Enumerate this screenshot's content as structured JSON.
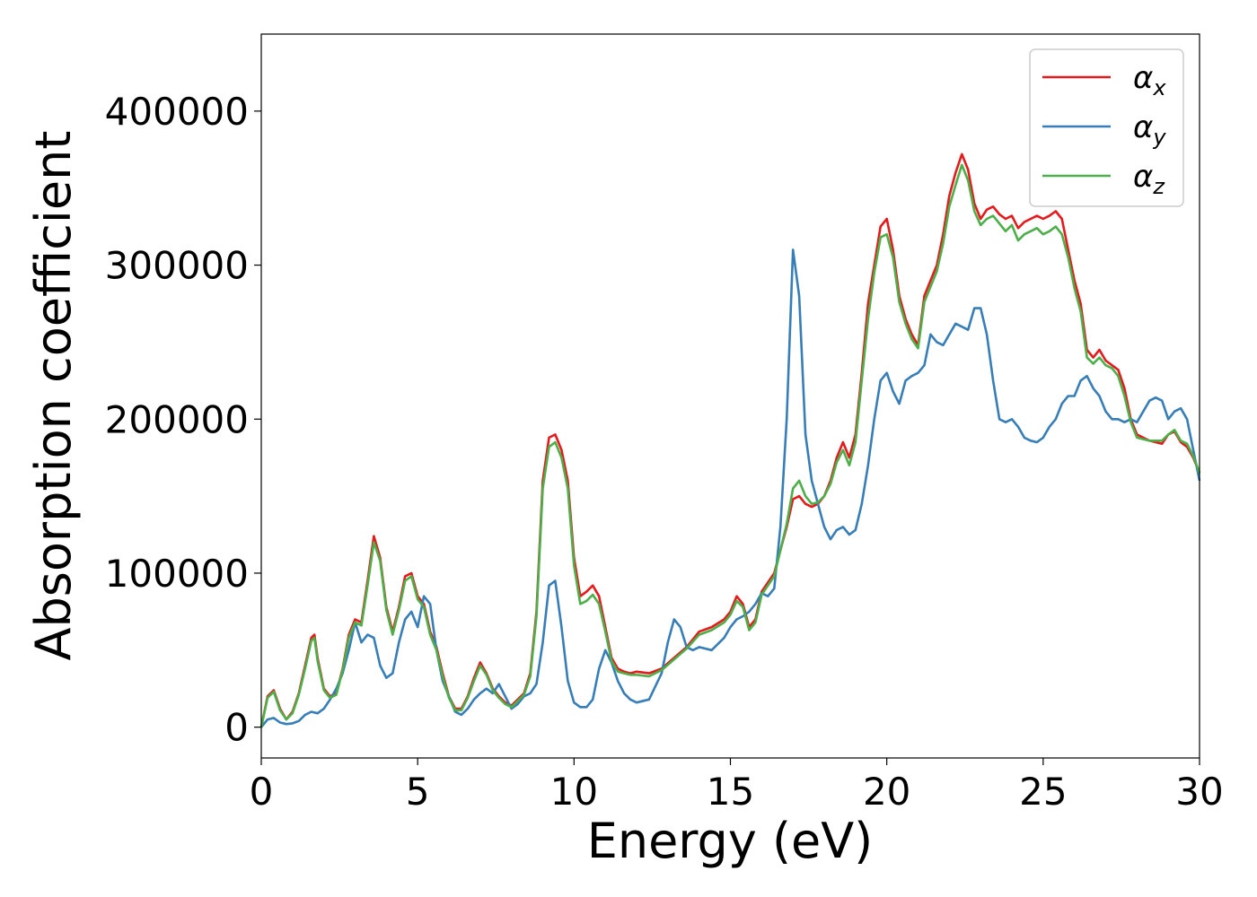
{
  "chart_data": {
    "type": "line",
    "xlabel": "Energy (eV)",
    "ylabel": "Absorption coefficient",
    "xlim": [
      0,
      30
    ],
    "ylim": [
      -20000,
      450000
    ],
    "xticks": [
      0,
      5,
      10,
      15,
      20,
      25,
      30
    ],
    "yticks": [
      0,
      100000,
      200000,
      300000,
      400000
    ],
    "grid": false,
    "legend_position": "top-right",
    "series": [
      {
        "name": "α",
        "subscript": "x",
        "color": "#e41a1c",
        "x": [
          0,
          0.2,
          0.4,
          0.6,
          0.8,
          1.0,
          1.2,
          1.4,
          1.6,
          1.7,
          1.8,
          2.0,
          2.2,
          2.4,
          2.6,
          2.8,
          3.0,
          3.2,
          3.4,
          3.6,
          3.8,
          4.0,
          4.2,
          4.4,
          4.6,
          4.8,
          5.0,
          5.2,
          5.4,
          5.6,
          5.8,
          6.0,
          6.2,
          6.4,
          6.6,
          6.8,
          7.0,
          7.2,
          7.4,
          7.6,
          7.8,
          8.0,
          8.2,
          8.4,
          8.6,
          8.8,
          9.0,
          9.2,
          9.4,
          9.6,
          9.8,
          10.0,
          10.2,
          10.4,
          10.6,
          10.8,
          11.0,
          11.2,
          11.4,
          11.6,
          11.8,
          12.0,
          12.4,
          12.8,
          13.2,
          13.6,
          14.0,
          14.4,
          14.8,
          15.0,
          15.2,
          15.4,
          15.6,
          15.8,
          16.0,
          16.4,
          16.8,
          17.0,
          17.2,
          17.4,
          17.6,
          17.8,
          18.0,
          18.2,
          18.4,
          18.6,
          18.8,
          19.0,
          19.2,
          19.4,
          19.6,
          19.8,
          20.0,
          20.2,
          20.4,
          20.6,
          20.8,
          21.0,
          21.2,
          21.4,
          21.6,
          21.8,
          22.0,
          22.2,
          22.4,
          22.6,
          22.8,
          23.0,
          23.2,
          23.4,
          23.6,
          23.8,
          24.0,
          24.2,
          24.4,
          24.6,
          24.8,
          25.0,
          25.2,
          25.4,
          25.6,
          25.8,
          26.0,
          26.2,
          26.4,
          26.6,
          26.8,
          27.0,
          27.2,
          27.4,
          27.6,
          27.8,
          28.0,
          28.2,
          28.4,
          28.6,
          28.8,
          29.0,
          29.2,
          29.4,
          29.6,
          29.8,
          30.0
        ],
        "y": [
          0,
          20000,
          24000,
          12000,
          5000,
          10000,
          22000,
          40000,
          58000,
          60000,
          45000,
          25000,
          20000,
          22000,
          38000,
          60000,
          70000,
          68000,
          95000,
          124000,
          110000,
          78000,
          62000,
          78000,
          98000,
          100000,
          85000,
          80000,
          62000,
          52000,
          35000,
          20000,
          12000,
          12000,
          20000,
          32000,
          42000,
          35000,
          25000,
          20000,
          16000,
          14000,
          18000,
          22000,
          35000,
          75000,
          160000,
          188000,
          190000,
          180000,
          160000,
          110000,
          85000,
          88000,
          92000,
          85000,
          65000,
          45000,
          38000,
          36000,
          35000,
          36000,
          35000,
          38000,
          45000,
          52000,
          62000,
          65000,
          70000,
          75000,
          85000,
          80000,
          65000,
          70000,
          88000,
          100000,
          130000,
          148000,
          150000,
          145000,
          143000,
          145000,
          150000,
          160000,
          175000,
          185000,
          175000,
          190000,
          230000,
          275000,
          300000,
          325000,
          330000,
          310000,
          280000,
          265000,
          255000,
          248000,
          280000,
          290000,
          300000,
          320000,
          345000,
          360000,
          372000,
          362000,
          340000,
          330000,
          336000,
          338000,
          333000,
          330000,
          332000,
          324000,
          328000,
          330000,
          332000,
          330000,
          332000,
          335000,
          330000,
          310000,
          290000,
          275000,
          245000,
          240000,
          245000,
          238000,
          235000,
          232000,
          220000,
          200000,
          190000,
          188000,
          186000,
          185000,
          184000,
          190000,
          192000,
          185000,
          182000,
          175000,
          165000
        ],
        "legend_label": "α",
        "legend_sub": "x"
      },
      {
        "name": "α",
        "subscript": "y",
        "color": "#377eb8",
        "x": [
          0,
          0.2,
          0.4,
          0.6,
          0.8,
          1.0,
          1.2,
          1.4,
          1.6,
          1.8,
          2.0,
          2.2,
          2.4,
          2.6,
          2.8,
          3.0,
          3.2,
          3.4,
          3.6,
          3.8,
          4.0,
          4.2,
          4.4,
          4.6,
          4.8,
          5.0,
          5.2,
          5.4,
          5.6,
          5.8,
          6.0,
          6.2,
          6.4,
          6.6,
          6.8,
          7.0,
          7.2,
          7.4,
          7.6,
          7.8,
          8.0,
          8.2,
          8.4,
          8.6,
          8.8,
          9.0,
          9.2,
          9.4,
          9.6,
          9.8,
          10.0,
          10.2,
          10.4,
          10.6,
          10.8,
          11.0,
          11.2,
          11.4,
          11.6,
          11.8,
          12.0,
          12.4,
          12.8,
          13.0,
          13.2,
          13.4,
          13.6,
          13.8,
          14.0,
          14.4,
          14.8,
          15.0,
          15.2,
          15.4,
          15.6,
          15.8,
          16.0,
          16.2,
          16.4,
          16.6,
          16.8,
          17.0,
          17.2,
          17.4,
          17.6,
          17.8,
          18.0,
          18.2,
          18.4,
          18.6,
          18.8,
          19.0,
          19.2,
          19.4,
          19.6,
          19.8,
          20.0,
          20.2,
          20.4,
          20.6,
          20.8,
          21.0,
          21.2,
          21.4,
          21.6,
          21.8,
          22.0,
          22.2,
          22.4,
          22.6,
          22.8,
          23.0,
          23.2,
          23.4,
          23.6,
          23.8,
          24.0,
          24.2,
          24.4,
          24.6,
          24.8,
          25.0,
          25.2,
          25.4,
          25.6,
          25.8,
          26.0,
          26.2,
          26.4,
          26.6,
          26.8,
          27.0,
          27.2,
          27.4,
          27.6,
          27.8,
          28.0,
          28.2,
          28.4,
          28.6,
          28.8,
          29.0,
          29.2,
          29.4,
          29.6,
          29.8,
          30.0
        ],
        "y": [
          0,
          5000,
          6000,
          3000,
          2000,
          2500,
          4000,
          8000,
          10000,
          9000,
          12000,
          18000,
          25000,
          35000,
          50000,
          68000,
          55000,
          60000,
          58000,
          40000,
          32000,
          35000,
          55000,
          70000,
          75000,
          65000,
          85000,
          80000,
          50000,
          30000,
          20000,
          10000,
          8000,
          12000,
          18000,
          22000,
          25000,
          22000,
          28000,
          20000,
          12000,
          15000,
          20000,
          22000,
          28000,
          55000,
          92000,
          95000,
          65000,
          30000,
          16000,
          13000,
          13000,
          18000,
          38000,
          50000,
          42000,
          30000,
          22000,
          18000,
          16000,
          18000,
          35000,
          55000,
          70000,
          65000,
          52000,
          50000,
          52000,
          50000,
          58000,
          65000,
          70000,
          72000,
          75000,
          80000,
          87000,
          85000,
          90000,
          130000,
          200000,
          310000,
          280000,
          190000,
          160000,
          145000,
          130000,
          122000,
          128000,
          130000,
          125000,
          128000,
          145000,
          170000,
          200000,
          225000,
          230000,
          218000,
          210000,
          225000,
          228000,
          230000,
          235000,
          255000,
          250000,
          248000,
          255000,
          262000,
          260000,
          258000,
          272000,
          272000,
          255000,
          225000,
          200000,
          198000,
          200000,
          195000,
          188000,
          186000,
          185000,
          188000,
          195000,
          200000,
          210000,
          215000,
          215000,
          225000,
          228000,
          220000,
          215000,
          205000,
          200000,
          200000,
          198000,
          200000,
          198000,
          205000,
          212000,
          214000,
          212000,
          200000,
          205000,
          207000,
          200000,
          180000,
          160000
        ],
        "legend_label": "α",
        "legend_sub": "y"
      },
      {
        "name": "α",
        "subscript": "z",
        "color": "#4daf4a",
        "x": [
          0,
          0.2,
          0.4,
          0.6,
          0.8,
          1.0,
          1.2,
          1.4,
          1.6,
          1.7,
          1.8,
          2.0,
          2.2,
          2.4,
          2.6,
          2.8,
          3.0,
          3.2,
          3.4,
          3.6,
          3.8,
          4.0,
          4.2,
          4.4,
          4.6,
          4.8,
          5.0,
          5.2,
          5.4,
          5.6,
          5.8,
          6.0,
          6.2,
          6.4,
          6.6,
          6.8,
          7.0,
          7.2,
          7.4,
          7.6,
          7.8,
          8.0,
          8.2,
          8.4,
          8.6,
          8.8,
          9.0,
          9.2,
          9.4,
          9.6,
          9.8,
          10.0,
          10.2,
          10.4,
          10.6,
          10.8,
          11.0,
          11.2,
          11.4,
          11.6,
          11.8,
          12.0,
          12.4,
          12.8,
          13.2,
          13.6,
          14.0,
          14.4,
          14.8,
          15.0,
          15.2,
          15.4,
          15.6,
          15.8,
          16.0,
          16.4,
          16.8,
          17.0,
          17.2,
          17.4,
          17.6,
          17.8,
          18.0,
          18.2,
          18.4,
          18.6,
          18.8,
          19.0,
          19.2,
          19.4,
          19.6,
          19.8,
          20.0,
          20.2,
          20.4,
          20.6,
          20.8,
          21.0,
          21.2,
          21.4,
          21.6,
          21.8,
          22.0,
          22.2,
          22.4,
          22.6,
          22.8,
          23.0,
          23.2,
          23.4,
          23.6,
          23.8,
          24.0,
          24.2,
          24.4,
          24.6,
          24.8,
          25.0,
          25.2,
          25.4,
          25.6,
          25.8,
          26.0,
          26.2,
          26.4,
          26.6,
          26.8,
          27.0,
          27.2,
          27.4,
          27.6,
          27.8,
          28.0,
          28.2,
          28.4,
          28.6,
          28.8,
          29.0,
          29.2,
          29.4,
          29.6,
          29.8,
          30.0
        ],
        "y": [
          0,
          19000,
          23000,
          11000,
          5000,
          9000,
          21000,
          38000,
          56000,
          58000,
          43000,
          24000,
          19000,
          21000,
          37000,
          58000,
          68000,
          66000,
          92000,
          120000,
          108000,
          76000,
          60000,
          76000,
          95000,
          98000,
          83000,
          78000,
          60000,
          50000,
          33000,
          19000,
          11000,
          11000,
          19000,
          30000,
          40000,
          34000,
          24000,
          19000,
          15000,
          13000,
          17000,
          21000,
          33000,
          72000,
          155000,
          182000,
          185000,
          175000,
          155000,
          105000,
          80000,
          82000,
          86000,
          80000,
          62000,
          43000,
          36000,
          35000,
          34000,
          34000,
          33000,
          37000,
          44000,
          51000,
          60000,
          63000,
          68000,
          73000,
          82000,
          78000,
          63000,
          68000,
          86000,
          98000,
          132000,
          155000,
          160000,
          150000,
          145000,
          146000,
          150000,
          158000,
          172000,
          180000,
          170000,
          185000,
          225000,
          265000,
          295000,
          318000,
          320000,
          305000,
          276000,
          262000,
          252000,
          246000,
          276000,
          286000,
          296000,
          314000,
          338000,
          352000,
          365000,
          355000,
          335000,
          326000,
          330000,
          332000,
          327000,
          322000,
          326000,
          316000,
          320000,
          322000,
          324000,
          320000,
          322000,
          325000,
          320000,
          305000,
          285000,
          270000,
          240000,
          236000,
          240000,
          235000,
          233000,
          228000,
          215000,
          198000,
          188000,
          187000,
          186000,
          186000,
          186000,
          190000,
          193000,
          186000,
          184000,
          176000,
          165000
        ],
        "legend_label": "α",
        "legend_sub": "z"
      }
    ]
  }
}
